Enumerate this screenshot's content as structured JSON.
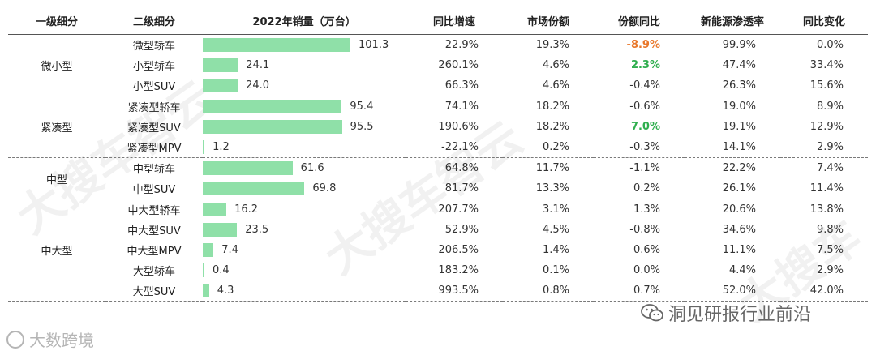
{
  "watermarks": {
    "left": "大搜车智云",
    "middle": "大搜车智云",
    "right": "大搜车"
  },
  "logos": {
    "left_text": "大数跨境",
    "right_text": "洞见研报行业前沿"
  },
  "colors": {
    "bar": "#8fe0a8",
    "negative_highlight": "#e8782c",
    "positive_highlight": "#2fae4e"
  },
  "chart_data": {
    "type": "table",
    "columns": [
      "一级细分",
      "二级细分",
      "2022年销量（万台）",
      "同比增速",
      "市场份额",
      "份额同比",
      "新能源渗透率",
      "同比变化"
    ],
    "bar_max": 101.3,
    "groups": [
      {
        "name": "微小型",
        "rows": [
          {
            "sub": "微型轿车",
            "sales": 101.3,
            "sales_label": "101.3",
            "yoy": "22.9%",
            "share": "19.3%",
            "share_yoy": "-8.9%",
            "share_yoy_style": "orange",
            "nev": "99.9%",
            "nev_change": "0.0%"
          },
          {
            "sub": "小型轿车",
            "sales": 24.1,
            "sales_label": "24.1",
            "yoy": "260.1%",
            "share": "4.6%",
            "share_yoy": "2.3%",
            "share_yoy_style": "green",
            "nev": "47.4%",
            "nev_change": "33.4%"
          },
          {
            "sub": "小型SUV",
            "sales": 24.0,
            "sales_label": "24.0",
            "yoy": "66.3%",
            "share": "4.6%",
            "share_yoy": "-0.4%",
            "share_yoy_style": "",
            "nev": "26.3%",
            "nev_change": "15.6%"
          }
        ]
      },
      {
        "name": "紧凑型",
        "rows": [
          {
            "sub": "紧凑型轿车",
            "sales": 95.4,
            "sales_label": "95.4",
            "yoy": "74.1%",
            "share": "18.2%",
            "share_yoy": "-0.6%",
            "share_yoy_style": "",
            "nev": "19.0%",
            "nev_change": "8.9%"
          },
          {
            "sub": "紧凑型SUV",
            "sales": 95.5,
            "sales_label": "95.5",
            "yoy": "190.6%",
            "share": "18.2%",
            "share_yoy": "7.0%",
            "share_yoy_style": "green",
            "nev": "19.1%",
            "nev_change": "12.9%"
          },
          {
            "sub": "紧凑型MPV",
            "sales": 1.2,
            "sales_label": "1.2",
            "yoy": "-22.1%",
            "share": "0.2%",
            "share_yoy": "-0.3%",
            "share_yoy_style": "",
            "nev": "14.1%",
            "nev_change": "2.9%"
          }
        ]
      },
      {
        "name": "中型",
        "rows": [
          {
            "sub": "中型轿车",
            "sales": 61.6,
            "sales_label": "61.6",
            "yoy": "64.8%",
            "share": "11.7%",
            "share_yoy": "-1.1%",
            "share_yoy_style": "",
            "nev": "22.2%",
            "nev_change": "7.4%"
          },
          {
            "sub": "中型SUV",
            "sales": 69.8,
            "sales_label": "69.8",
            "yoy": "81.7%",
            "share": "13.3%",
            "share_yoy": "0.2%",
            "share_yoy_style": "",
            "nev": "26.1%",
            "nev_change": "11.4%"
          }
        ]
      },
      {
        "name": "中大型",
        "rows": [
          {
            "sub": "中大型轿车",
            "sales": 16.2,
            "sales_label": "16.2",
            "yoy": "207.7%",
            "share": "3.1%",
            "share_yoy": "1.3%",
            "share_yoy_style": "",
            "nev": "20.6%",
            "nev_change": "13.8%"
          },
          {
            "sub": "中大型SUV",
            "sales": 23.5,
            "sales_label": "23.5",
            "yoy": "52.9%",
            "share": "4.5%",
            "share_yoy": "-0.8%",
            "share_yoy_style": "",
            "nev": "34.6%",
            "nev_change": "9.8%"
          },
          {
            "sub": "中大型MPV",
            "sales": 7.4,
            "sales_label": "7.4",
            "yoy": "206.5%",
            "share": "1.4%",
            "share_yoy": "0.6%",
            "share_yoy_style": "",
            "nev": "11.1%",
            "nev_change": "7.5%"
          },
          {
            "sub": "大型轿车",
            "sales": 0.4,
            "sales_label": "0.4",
            "yoy": "183.2%",
            "share": "0.1%",
            "share_yoy": "0.0%",
            "share_yoy_style": "",
            "nev": "4.4%",
            "nev_change": "2.9%"
          },
          {
            "sub": "大型SUV",
            "sales": 4.3,
            "sales_label": "4.3",
            "yoy": "993.5%",
            "share": "0.8%",
            "share_yoy": "0.7%",
            "share_yoy_style": "",
            "nev": "52.0%",
            "nev_change": "42.0%"
          }
        ]
      }
    ]
  }
}
